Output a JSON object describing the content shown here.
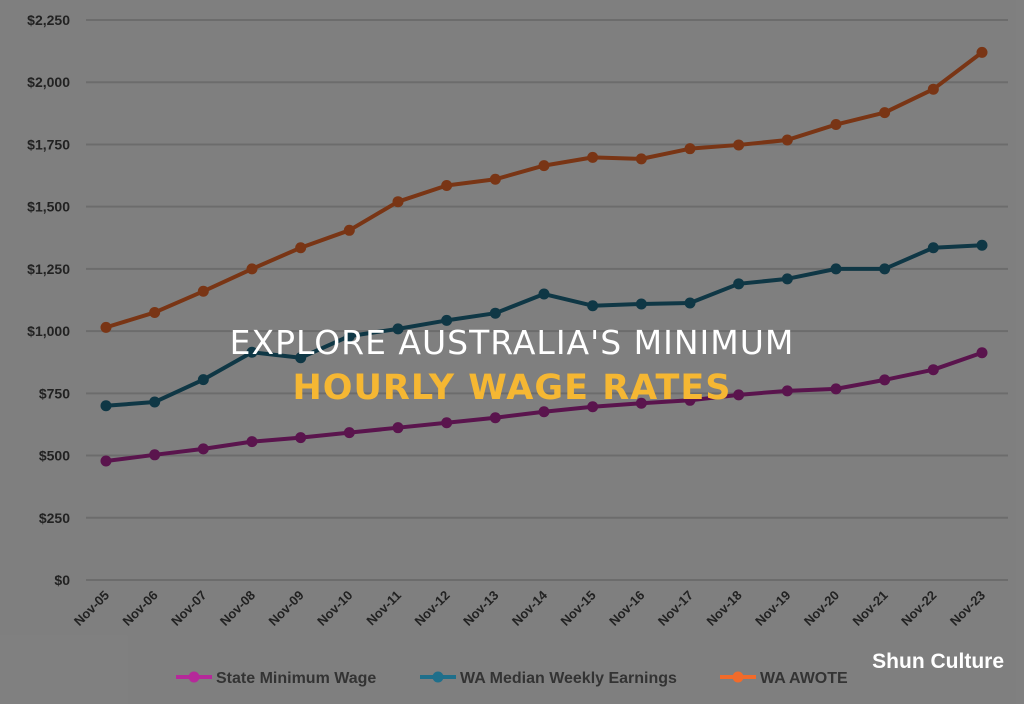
{
  "title": {
    "line1": "EXPLORE AUSTRALIA'S MINIMUM",
    "line2": "HOURLY WAGE RATES"
  },
  "watermark": "Shun Culture",
  "colors": {
    "state_min": "#b5299a",
    "median": "#1f6f8b",
    "awote": "#f26b2a",
    "grid": "#ffffff",
    "axis_text": "#444444"
  },
  "chart_data": {
    "type": "line",
    "title": "",
    "xlabel": "",
    "ylabel": "",
    "ylim": [
      0,
      2250
    ],
    "yticks": [
      0,
      250,
      500,
      750,
      1000,
      1250,
      1500,
      1750,
      2000,
      2250
    ],
    "ytick_labels": [
      "$0",
      "$250",
      "$500",
      "$750",
      "$1,000",
      "$1,250",
      "$1,500",
      "$1,750",
      "$2,000",
      "$2,250"
    ],
    "grid": true,
    "legend_position": "bottom",
    "x": [
      "Nov-05",
      "Nov-06",
      "Nov-07",
      "Nov-08",
      "Nov-09",
      "Nov-10",
      "Nov-11",
      "Nov-12",
      "Nov-13",
      "Nov-14",
      "Nov-15",
      "Nov-16",
      "Nov-17",
      "Nov-18",
      "Nov-19",
      "Nov-20",
      "Nov-21",
      "Nov-22",
      "Nov-23"
    ],
    "series": [
      {
        "name": "State Minimum Wage",
        "color_key": "state_min",
        "values": [
          478,
          503,
          527,
          556,
          572,
          592,
          612,
          632,
          652,
          676,
          696,
          710,
          722,
          744,
          760,
          768,
          804,
          845,
          913
        ]
      },
      {
        "name": "WA Median Weekly Earnings",
        "color_key": "median",
        "values": [
          700,
          715,
          805,
          915,
          893,
          980,
          1009,
          1043,
          1072,
          1149,
          1102,
          1109,
          1113,
          1190,
          1210,
          1250,
          1250,
          1335,
          1345
        ]
      },
      {
        "name": "WA AWOTE",
        "color_key": "awote",
        "values": [
          1015,
          1075,
          1160,
          1250,
          1335,
          1405,
          1520,
          1585,
          1610,
          1665,
          1698,
          1692,
          1733,
          1748,
          1768,
          1830,
          1878,
          1972,
          2120
        ]
      }
    ]
  }
}
